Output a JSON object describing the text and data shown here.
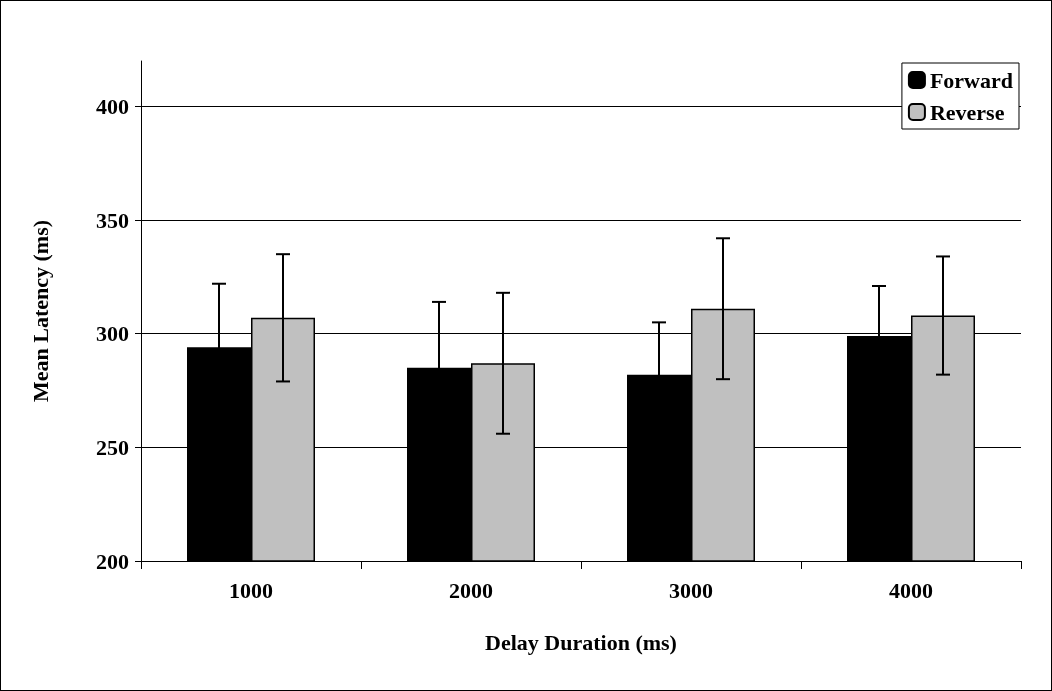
{
  "chart_data": {
    "type": "bar",
    "xlabel": "Delay Duration (ms)",
    "ylabel": "Mean Latency (ms)",
    "categories": [
      "1000",
      "2000",
      "3000",
      "4000"
    ],
    "series": [
      {
        "name": "Forward",
        "color": "#000000",
        "values": [
          294,
          285,
          282,
          299
        ],
        "errors": [
          28,
          29,
          23,
          22
        ]
      },
      {
        "name": "Reverse",
        "color": "#c0c0c0",
        "values": [
          307,
          287,
          311,
          308
        ],
        "errors": [
          28,
          31,
          31,
          26
        ]
      }
    ],
    "ylim": [
      200,
      420
    ],
    "yticks": [
      200,
      250,
      300,
      350,
      400
    ],
    "grid": "y",
    "legend": "top right"
  }
}
